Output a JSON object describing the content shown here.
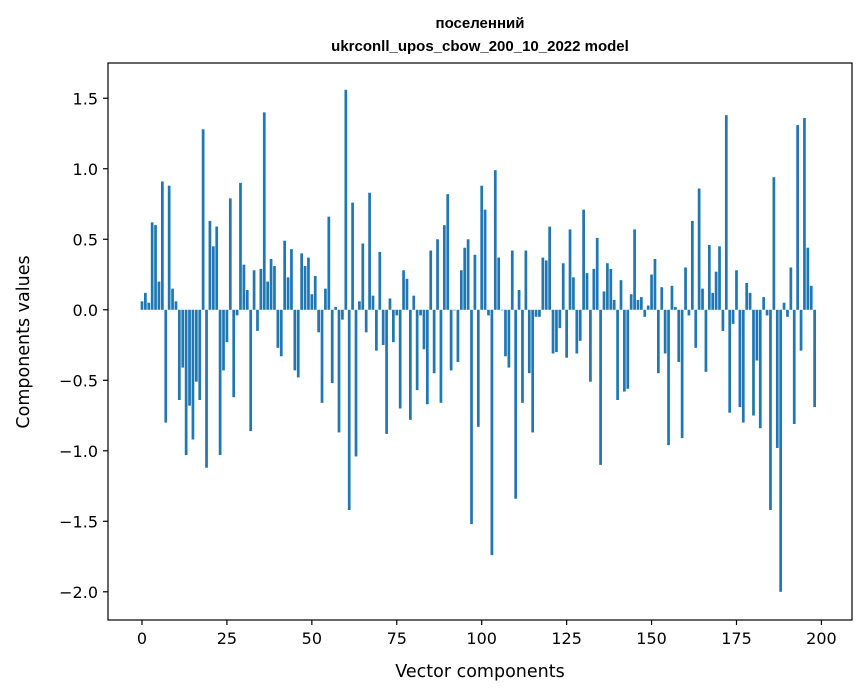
{
  "chart_data": {
    "type": "bar",
    "title": "поселенний",
    "subtitle": "ukrconll_upos_cbow_200_10_2022 model",
    "xlabel": "Vector components",
    "ylabel": "Components values",
    "xlim": [
      -10,
      209
    ],
    "ylim": [
      -2.2,
      1.75
    ],
    "xticks": [
      0,
      25,
      50,
      75,
      100,
      125,
      150,
      175,
      200
    ],
    "yticks": [
      1.5,
      1.0,
      0.5,
      0.0,
      -0.5,
      -1.0,
      -1.5,
      -2.0
    ],
    "ytick_labels": [
      "1.5",
      "1.0",
      "0.5",
      "0.0",
      "−0.5",
      "−1.0",
      "−1.5",
      "−2.0"
    ],
    "bar_color": "#1f77b4",
    "values": [
      0.06,
      0.12,
      0.05,
      0.62,
      0.6,
      0.2,
      0.91,
      -0.8,
      0.88,
      0.15,
      0.06,
      -0.64,
      -0.41,
      -1.03,
      -0.68,
      -0.92,
      -0.51,
      -0.64,
      1.28,
      -1.12,
      0.63,
      0.45,
      0.59,
      -1.03,
      -0.43,
      -0.23,
      0.79,
      -0.62,
      -0.04,
      0.9,
      0.32,
      0.14,
      -0.86,
      0.28,
      -0.15,
      0.29,
      1.4,
      0.2,
      0.36,
      0.31,
      -0.27,
      -0.33,
      0.49,
      0.23,
      0.43,
      -0.43,
      -0.48,
      0.4,
      0.31,
      0.37,
      0.11,
      0.24,
      -0.16,
      -0.66,
      0.15,
      0.66,
      -0.52,
      0.02,
      -0.87,
      -0.07,
      1.56,
      -1.42,
      0.76,
      -1.04,
      0.06,
      0.47,
      -0.16,
      0.83,
      0.1,
      -0.29,
      0.41,
      -0.25,
      -0.88,
      0.08,
      -0.23,
      -0.04,
      -0.7,
      0.28,
      0.22,
      -0.78,
      0.1,
      -0.57,
      -0.04,
      -0.28,
      -0.67,
      0.42,
      -0.45,
      0.5,
      -0.66,
      0.6,
      0.82,
      -0.43,
      0.0,
      -0.37,
      0.28,
      0.44,
      0.5,
      -1.52,
      0.39,
      -0.83,
      0.88,
      0.71,
      -0.04,
      -1.74,
      0.99,
      0.37,
      0.0,
      -0.33,
      -0.41,
      0.42,
      -1.34,
      0.14,
      -0.66,
      0.42,
      -0.45,
      -0.87,
      -0.05,
      -0.05,
      0.37,
      0.35,
      0.59,
      -0.31,
      -0.3,
      -0.13,
      0.33,
      -0.34,
      0.57,
      0.23,
      -0.31,
      -0.22,
      0.71,
      0.26,
      -0.51,
      0.29,
      0.51,
      -1.1,
      0.13,
      0.33,
      0.29,
      0.07,
      -0.64,
      0.21,
      -0.58,
      -0.56,
      0.11,
      0.57,
      0.07,
      0.09,
      -0.05,
      0.03,
      0.25,
      0.36,
      -0.45,
      0.16,
      -0.31,
      -0.96,
      0.17,
      0.02,
      -0.37,
      -0.91,
      0.3,
      -0.04,
      0.63,
      -0.27,
      0.86,
      0.15,
      -0.44,
      0.46,
      0.12,
      0.27,
      0.45,
      -0.15,
      1.38,
      -0.73,
      -0.1,
      0.28,
      -0.69,
      -0.8,
      0.19,
      0.12,
      -0.75,
      -0.36,
      -0.84,
      0.09,
      -0.04,
      -1.42,
      0.94,
      -0.98,
      -2.0,
      0.05,
      -0.05,
      0.3,
      -0.81,
      1.31,
      -0.29,
      1.36,
      0.44,
      0.17,
      -0.69
    ]
  }
}
